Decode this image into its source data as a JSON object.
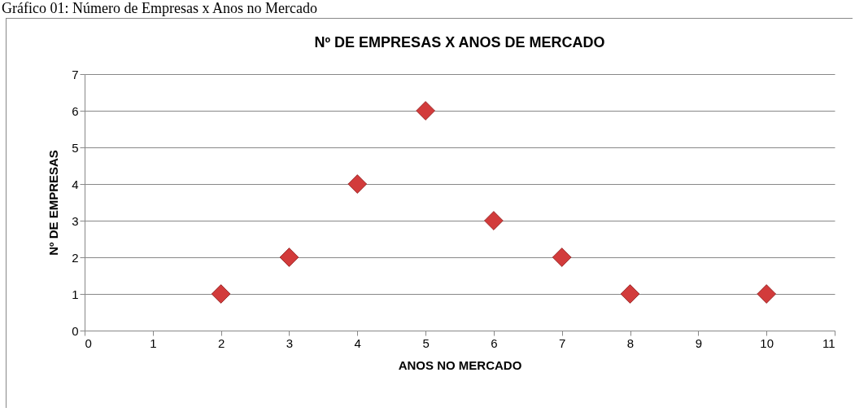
{
  "chart_data": {
    "type": "scatter",
    "title": "Nº DE EMPRESAS X ANOS DE MERCADO",
    "xlabel": "ANOS NO MERCADO",
    "ylabel": "Nº DE EMPRESAS",
    "annotations": [
      "Gráfico 01: Número de Empresas x Anos no Mercado"
    ],
    "x": [
      2,
      3,
      4,
      5,
      6,
      7,
      8,
      10
    ],
    "series": [
      {
        "color": "#d23b3b",
        "values": [
          1,
          2,
          4,
          6,
          3,
          2,
          1,
          1
        ]
      }
    ],
    "xlim": [
      0,
      11
    ],
    "xticks": [
      0,
      1,
      2,
      3,
      4,
      5,
      6,
      7,
      8,
      9,
      10,
      11
    ],
    "ylim": [
      0,
      7
    ],
    "yticks": [
      0,
      1,
      2,
      3,
      4,
      5,
      6,
      7
    ],
    "grid": "y",
    "marker": "diamond"
  }
}
